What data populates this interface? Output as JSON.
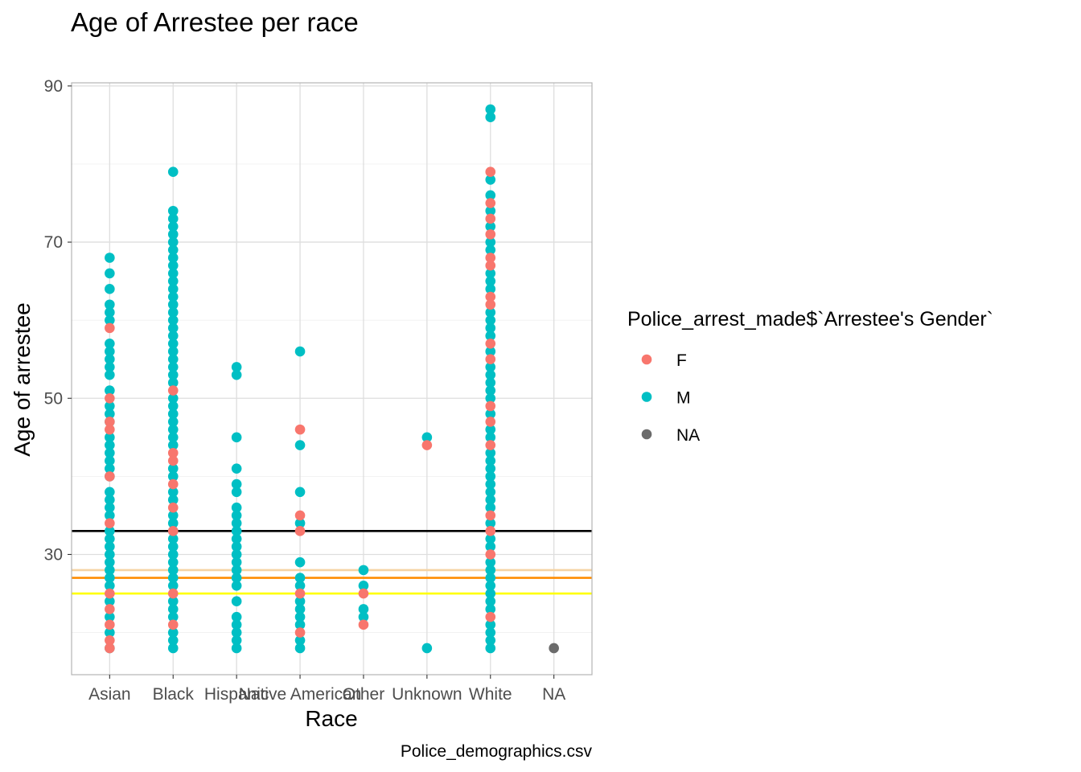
{
  "chart_data": {
    "type": "scatter",
    "title": "Age of Arrestee per race",
    "xlabel": "Race",
    "ylabel": "Age of arrestee",
    "caption": "Police_demographics.csv",
    "categories": [
      "Asian",
      "Black",
      "Hispanic",
      "Native American",
      "Other",
      "Unknown",
      "White",
      "NA"
    ],
    "ylim": [
      14.6,
      90.4
    ],
    "yticks": [
      30,
      50,
      70,
      90
    ],
    "grid": true,
    "legend_position": "right",
    "legend": {
      "title": "Police_arrest_made$`Arrestee's Gender`",
      "entries": [
        {
          "label": "F",
          "color": "#F8766D"
        },
        {
          "label": "M",
          "color": "#00BFC4"
        },
        {
          "label": "NA",
          "color": "#6b6b6b"
        }
      ]
    },
    "colors": {
      "F": "#F8766D",
      "M": "#00BFC4",
      "NA": "#6b6b6b"
    },
    "series": [
      {
        "name": "M",
        "points": [
          [
            "Asian",
            68
          ],
          [
            "Asian",
            66
          ],
          [
            "Asian",
            64
          ],
          [
            "Asian",
            62
          ],
          [
            "Asian",
            61
          ],
          [
            "Asian",
            60
          ],
          [
            "Asian",
            57
          ],
          [
            "Asian",
            56
          ],
          [
            "Asian",
            55
          ],
          [
            "Asian",
            54
          ],
          [
            "Asian",
            53
          ],
          [
            "Asian",
            51
          ],
          [
            "Asian",
            49
          ],
          [
            "Asian",
            48
          ],
          [
            "Asian",
            47
          ],
          [
            "Asian",
            45
          ],
          [
            "Asian",
            44
          ],
          [
            "Asian",
            43
          ],
          [
            "Asian",
            42
          ],
          [
            "Asian",
            41
          ],
          [
            "Asian",
            40
          ],
          [
            "Asian",
            38
          ],
          [
            "Asian",
            37
          ],
          [
            "Asian",
            36
          ],
          [
            "Asian",
            35
          ],
          [
            "Asian",
            33
          ],
          [
            "Asian",
            32
          ],
          [
            "Asian",
            31
          ],
          [
            "Asian",
            30
          ],
          [
            "Asian",
            29
          ],
          [
            "Asian",
            28
          ],
          [
            "Asian",
            27
          ],
          [
            "Asian",
            26
          ],
          [
            "Asian",
            24
          ],
          [
            "Asian",
            22
          ],
          [
            "Asian",
            20
          ],
          [
            "Asian",
            18
          ],
          [
            "Black",
            79
          ],
          [
            "Black",
            74
          ],
          [
            "Black",
            73
          ],
          [
            "Black",
            72
          ],
          [
            "Black",
            71
          ],
          [
            "Black",
            70
          ],
          [
            "Black",
            69
          ],
          [
            "Black",
            68
          ],
          [
            "Black",
            67
          ],
          [
            "Black",
            66
          ],
          [
            "Black",
            65
          ],
          [
            "Black",
            64
          ],
          [
            "Black",
            63
          ],
          [
            "Black",
            62
          ],
          [
            "Black",
            61
          ],
          [
            "Black",
            60
          ],
          [
            "Black",
            59
          ],
          [
            "Black",
            58
          ],
          [
            "Black",
            57
          ],
          [
            "Black",
            56
          ],
          [
            "Black",
            55
          ],
          [
            "Black",
            54
          ],
          [
            "Black",
            53
          ],
          [
            "Black",
            52
          ],
          [
            "Black",
            50
          ],
          [
            "Black",
            49
          ],
          [
            "Black",
            48
          ],
          [
            "Black",
            47
          ],
          [
            "Black",
            46
          ],
          [
            "Black",
            45
          ],
          [
            "Black",
            44
          ],
          [
            "Black",
            41
          ],
          [
            "Black",
            40
          ],
          [
            "Black",
            38
          ],
          [
            "Black",
            37
          ],
          [
            "Black",
            35
          ],
          [
            "Black",
            34
          ],
          [
            "Black",
            33
          ],
          [
            "Black",
            32
          ],
          [
            "Black",
            31
          ],
          [
            "Black",
            30
          ],
          [
            "Black",
            29
          ],
          [
            "Black",
            28
          ],
          [
            "Black",
            27
          ],
          [
            "Black",
            26
          ],
          [
            "Black",
            24
          ],
          [
            "Black",
            23
          ],
          [
            "Black",
            22
          ],
          [
            "Black",
            20
          ],
          [
            "Black",
            19
          ],
          [
            "Black",
            18
          ],
          [
            "Hispanic",
            54
          ],
          [
            "Hispanic",
            53
          ],
          [
            "Hispanic",
            45
          ],
          [
            "Hispanic",
            41
          ],
          [
            "Hispanic",
            39
          ],
          [
            "Hispanic",
            38
          ],
          [
            "Hispanic",
            36
          ],
          [
            "Hispanic",
            35
          ],
          [
            "Hispanic",
            34
          ],
          [
            "Hispanic",
            33
          ],
          [
            "Hispanic",
            32
          ],
          [
            "Hispanic",
            31
          ],
          [
            "Hispanic",
            30
          ],
          [
            "Hispanic",
            29
          ],
          [
            "Hispanic",
            28
          ],
          [
            "Hispanic",
            27
          ],
          [
            "Hispanic",
            26
          ],
          [
            "Hispanic",
            24
          ],
          [
            "Hispanic",
            22
          ],
          [
            "Hispanic",
            21
          ],
          [
            "Hispanic",
            20
          ],
          [
            "Hispanic",
            19
          ],
          [
            "Hispanic",
            18
          ],
          [
            "Native American",
            56
          ],
          [
            "Native American",
            44
          ],
          [
            "Native American",
            38
          ],
          [
            "Native American",
            34
          ],
          [
            "Native American",
            29
          ],
          [
            "Native American",
            27
          ],
          [
            "Native American",
            26
          ],
          [
            "Native American",
            24
          ],
          [
            "Native American",
            23
          ],
          [
            "Native American",
            22
          ],
          [
            "Native American",
            21
          ],
          [
            "Native American",
            19
          ],
          [
            "Native American",
            18
          ],
          [
            "Other",
            28
          ],
          [
            "Other",
            26
          ],
          [
            "Other",
            23
          ],
          [
            "Other",
            22
          ],
          [
            "Unknown",
            45
          ],
          [
            "Unknown",
            18
          ],
          [
            "White",
            87
          ],
          [
            "White",
            86
          ],
          [
            "White",
            78
          ],
          [
            "White",
            76
          ],
          [
            "White",
            74
          ],
          [
            "White",
            72
          ],
          [
            "White",
            70
          ],
          [
            "White",
            69
          ],
          [
            "White",
            66
          ],
          [
            "White",
            65
          ],
          [
            "White",
            64
          ],
          [
            "White",
            61
          ],
          [
            "White",
            60
          ],
          [
            "White",
            59
          ],
          [
            "White",
            58
          ],
          [
            "White",
            56
          ],
          [
            "White",
            54
          ],
          [
            "White",
            53
          ],
          [
            "White",
            52
          ],
          [
            "White",
            51
          ],
          [
            "White",
            50
          ],
          [
            "White",
            48
          ],
          [
            "White",
            46
          ],
          [
            "White",
            45
          ],
          [
            "White",
            43
          ],
          [
            "White",
            42
          ],
          [
            "White",
            41
          ],
          [
            "White",
            40
          ],
          [
            "White",
            39
          ],
          [
            "White",
            38
          ],
          [
            "White",
            37
          ],
          [
            "White",
            36
          ],
          [
            "White",
            34
          ],
          [
            "White",
            32
          ],
          [
            "White",
            31
          ],
          [
            "White",
            29
          ],
          [
            "White",
            28
          ],
          [
            "White",
            27
          ],
          [
            "White",
            26
          ],
          [
            "White",
            25
          ],
          [
            "White",
            24
          ],
          [
            "White",
            23
          ],
          [
            "White",
            21
          ],
          [
            "White",
            20
          ],
          [
            "White",
            19
          ],
          [
            "White",
            18
          ]
        ]
      },
      {
        "name": "F",
        "points": [
          [
            "Asian",
            59
          ],
          [
            "Asian",
            50
          ],
          [
            "Asian",
            47
          ],
          [
            "Asian",
            46
          ],
          [
            "Asian",
            40
          ],
          [
            "Asian",
            34
          ],
          [
            "Asian",
            25
          ],
          [
            "Asian",
            23
          ],
          [
            "Asian",
            21
          ],
          [
            "Asian",
            19
          ],
          [
            "Asian",
            18
          ],
          [
            "Black",
            51
          ],
          [
            "Black",
            43
          ],
          [
            "Black",
            42
          ],
          [
            "Black",
            39
          ],
          [
            "Black",
            36
          ],
          [
            "Black",
            33
          ],
          [
            "Black",
            25
          ],
          [
            "Black",
            21
          ],
          [
            "Native American",
            46
          ],
          [
            "Native American",
            35
          ],
          [
            "Native American",
            33
          ],
          [
            "Native American",
            25
          ],
          [
            "Native American",
            20
          ],
          [
            "Other",
            25
          ],
          [
            "Other",
            21
          ],
          [
            "Unknown",
            44
          ],
          [
            "White",
            79
          ],
          [
            "White",
            75
          ],
          [
            "White",
            73
          ],
          [
            "White",
            71
          ],
          [
            "White",
            68
          ],
          [
            "White",
            67
          ],
          [
            "White",
            63
          ],
          [
            "White",
            62
          ],
          [
            "White",
            57
          ],
          [
            "White",
            55
          ],
          [
            "White",
            49
          ],
          [
            "White",
            47
          ],
          [
            "White",
            44
          ],
          [
            "White",
            35
          ],
          [
            "White",
            33
          ],
          [
            "White",
            30
          ],
          [
            "White",
            22
          ]
        ]
      },
      {
        "name": "NA",
        "points": [
          [
            "NA",
            18
          ]
        ]
      }
    ],
    "hlines": [
      {
        "y": 33,
        "color": "#000000"
      },
      {
        "y": 28,
        "color": "#f5d3a3"
      },
      {
        "y": 27,
        "color": "#ff8c00"
      },
      {
        "y": 25,
        "color": "#ffff00"
      }
    ]
  }
}
